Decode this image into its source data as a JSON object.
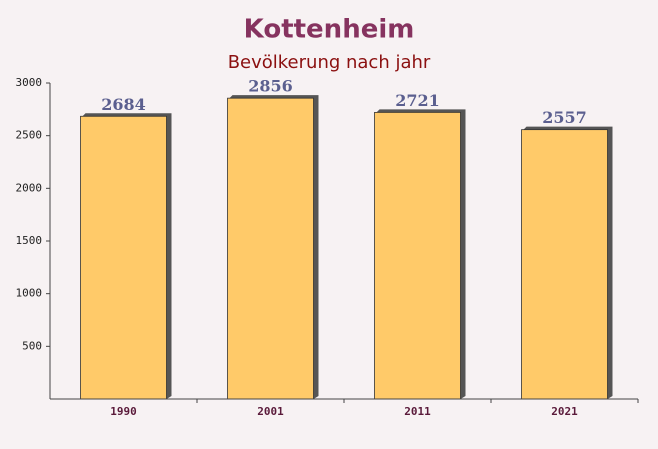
{
  "chart_data": {
    "type": "bar",
    "title": "Kottenheim",
    "subtitle": "Bevölkerung nach jahr",
    "categories": [
      "1990",
      "2001",
      "2011",
      "2021"
    ],
    "values": [
      2684,
      2856,
      2721,
      2557
    ],
    "color": "#ffc55a",
    "ylim": [
      0,
      3000
    ],
    "yticks": [
      500,
      1000,
      1500,
      2000,
      2500,
      3000
    ],
    "grid": false
  }
}
